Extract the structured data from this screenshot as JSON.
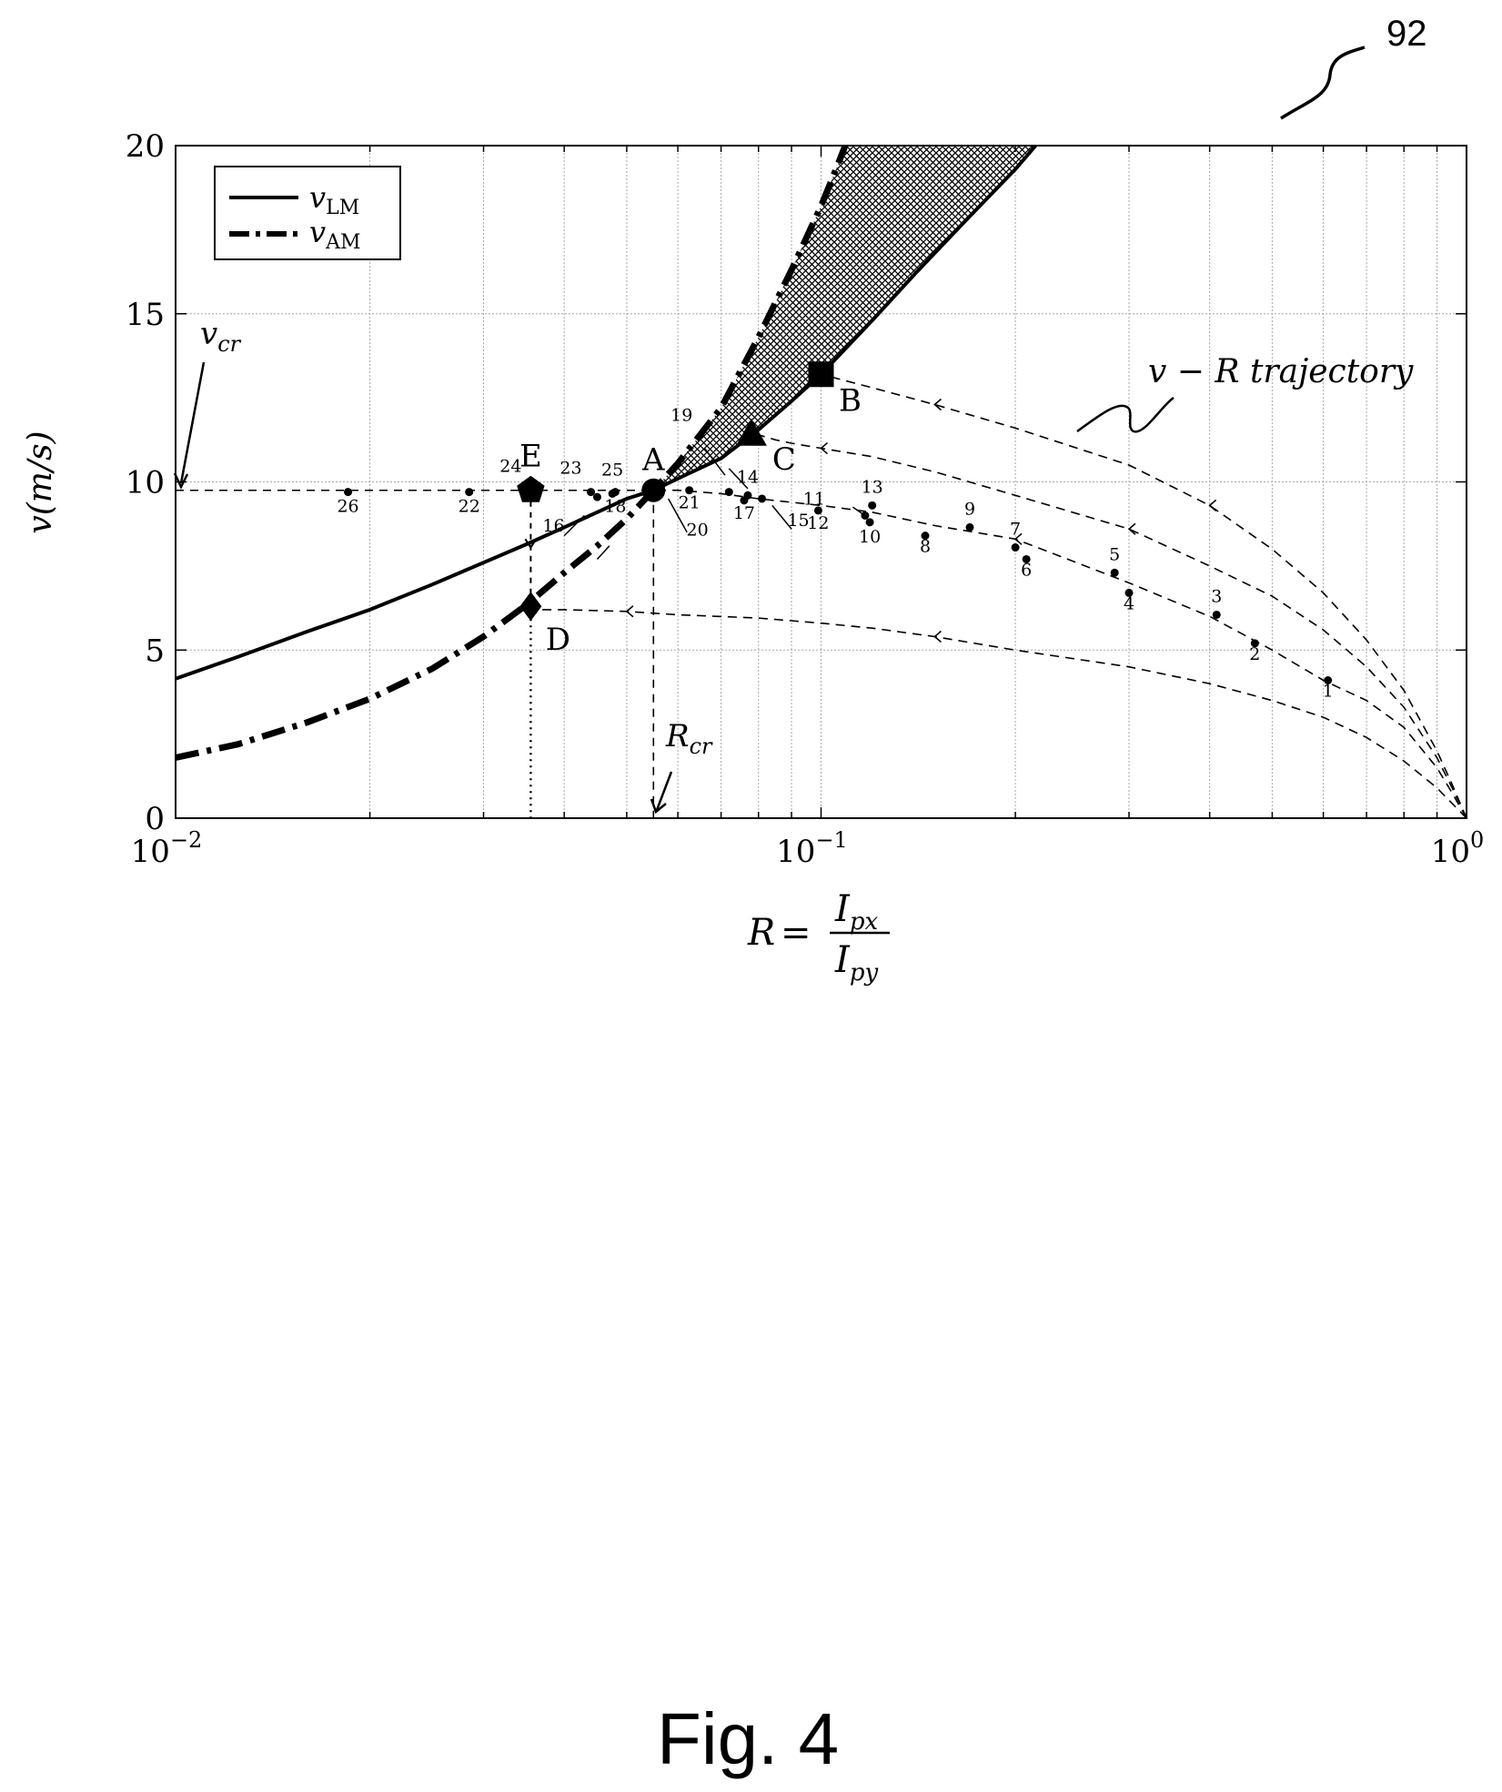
{
  "reference_numeral": "92",
  "figure_caption": "Fig. 4",
  "chart_data": {
    "type": "line",
    "x_scale": "log",
    "xlim": [
      0.01,
      1
    ],
    "ylim": [
      0,
      20
    ],
    "x_ticks": [
      {
        "value": 0.01,
        "base": "10",
        "exp": "−2"
      },
      {
        "value": 0.1,
        "base": "10",
        "exp": "−1"
      },
      {
        "value": 1,
        "base": "10",
        "exp": "0"
      }
    ],
    "y_ticks": [
      0,
      5,
      10,
      15,
      20
    ],
    "grid": true,
    "xlabel": {
      "lhs": "R",
      "eq": "=",
      "num": "I",
      "num_sub": "px",
      "den": "I",
      "den_sub": "py"
    },
    "ylabel": "v(m/s)",
    "legend": {
      "position": "top-left",
      "entries": [
        {
          "sym": "v",
          "sub": "LM",
          "style": "solid"
        },
        {
          "sym": "v",
          "sub": "AM",
          "style": "dash-dot"
        }
      ]
    },
    "series": [
      {
        "name": "vLM",
        "style": "solid",
        "points": [
          [
            0.01,
            4.15
          ],
          [
            0.0125,
            4.8
          ],
          [
            0.016,
            5.55
          ],
          [
            0.02,
            6.2
          ],
          [
            0.025,
            6.95
          ],
          [
            0.03,
            7.6
          ],
          [
            0.035,
            8.15
          ],
          [
            0.04,
            8.65
          ],
          [
            0.045,
            9.1
          ],
          [
            0.05,
            9.5
          ],
          [
            0.055,
            9.75
          ],
          [
            0.06,
            10.1
          ],
          [
            0.07,
            10.7
          ],
          [
            0.08,
            11.55
          ],
          [
            0.09,
            12.4
          ],
          [
            0.1,
            13.2
          ],
          [
            0.12,
            14.8
          ],
          [
            0.14,
            16.2
          ],
          [
            0.17,
            17.9
          ],
          [
            0.2,
            19.3
          ],
          [
            0.215,
            20
          ]
        ]
      },
      {
        "name": "vAM",
        "style": "dash-dot",
        "points": [
          [
            0.01,
            1.8
          ],
          [
            0.0125,
            2.2
          ],
          [
            0.016,
            2.85
          ],
          [
            0.02,
            3.55
          ],
          [
            0.025,
            4.45
          ],
          [
            0.03,
            5.4
          ],
          [
            0.035,
            6.35
          ],
          [
            0.04,
            7.3
          ],
          [
            0.045,
            8.1
          ],
          [
            0.05,
            8.9
          ],
          [
            0.055,
            9.75
          ],
          [
            0.06,
            10.55
          ],
          [
            0.07,
            12.2
          ],
          [
            0.08,
            14.3
          ],
          [
            0.09,
            16.3
          ],
          [
            0.1,
            18.2
          ],
          [
            0.105,
            19.2
          ],
          [
            0.109,
            20
          ]
        ]
      }
    ],
    "shaded_region": {
      "between": [
        "vAM",
        "vLM"
      ],
      "x_from": 0.055,
      "pattern": "crosshatch"
    },
    "trajectories": [
      {
        "style": "dashed",
        "points": [
          [
            1,
            0
          ],
          [
            0.95,
            1.0
          ],
          [
            0.9,
            2.0
          ],
          [
            0.8,
            3.8
          ],
          [
            0.7,
            5.3
          ],
          [
            0.6,
            6.7
          ],
          [
            0.5,
            8.0
          ],
          [
            0.4,
            9.3
          ],
          [
            0.3,
            10.5
          ],
          [
            0.2,
            11.6
          ],
          [
            0.15,
            12.3
          ],
          [
            0.12,
            12.8
          ],
          [
            0.1,
            13.2
          ]
        ],
        "arrows_at": [
          0.4,
          0.15
        ]
      },
      {
        "style": "dashed",
        "points": [
          [
            1,
            0
          ],
          [
            0.95,
            0.9
          ],
          [
            0.9,
            1.8
          ],
          [
            0.8,
            3.3
          ],
          [
            0.7,
            4.5
          ],
          [
            0.6,
            5.6
          ],
          [
            0.5,
            6.6
          ],
          [
            0.4,
            7.5
          ],
          [
            0.3,
            8.6
          ],
          [
            0.2,
            9.6
          ],
          [
            0.15,
            10.3
          ],
          [
            0.12,
            10.75
          ],
          [
            0.1,
            11.0
          ],
          [
            0.09,
            11.15
          ],
          [
            0.085,
            11.25
          ],
          [
            0.08,
            11.4
          ]
        ],
        "arrows_at": [
          0.3,
          0.1
        ]
      },
      {
        "style": "dashed",
        "points": [
          [
            1,
            0
          ],
          [
            0.95,
            0.75
          ],
          [
            0.9,
            1.5
          ],
          [
            0.8,
            2.7
          ],
          [
            0.7,
            3.5
          ],
          [
            0.6,
            4.1
          ],
          [
            0.5,
            5.0
          ],
          [
            0.4,
            6.0
          ],
          [
            0.3,
            7.0
          ],
          [
            0.2,
            8.3
          ],
          [
            0.15,
            8.7
          ],
          [
            0.12,
            9.1
          ],
          [
            0.1,
            9.3
          ],
          [
            0.08,
            9.5
          ],
          [
            0.07,
            9.65
          ],
          [
            0.06,
            9.75
          ],
          [
            0.055,
            9.75
          ]
        ],
        "arrows_at": [
          0.2
        ]
      },
      {
        "style": "dashed",
        "points": [
          [
            1,
            0
          ],
          [
            0.9,
            0.9
          ],
          [
            0.8,
            1.7
          ],
          [
            0.7,
            2.4
          ],
          [
            0.6,
            3.0
          ],
          [
            0.5,
            3.5
          ],
          [
            0.4,
            4.0
          ],
          [
            0.3,
            4.5
          ],
          [
            0.2,
            5.0
          ],
          [
            0.15,
            5.4
          ],
          [
            0.12,
            5.65
          ],
          [
            0.1,
            5.8
          ],
          [
            0.08,
            5.95
          ],
          [
            0.06,
            6.05
          ],
          [
            0.05,
            6.15
          ],
          [
            0.04,
            6.2
          ],
          [
            0.036,
            6.2
          ]
        ],
        "arrows_at": [
          0.15,
          0.05
        ]
      }
    ],
    "data_points": [
      {
        "label": "1",
        "x": 0.61,
        "y": 4.1
      },
      {
        "label": "2",
        "x": 0.47,
        "y": 5.2
      },
      {
        "label": "3",
        "x": 0.41,
        "y": 6.05
      },
      {
        "label": "4",
        "x": 0.3,
        "y": 6.7
      },
      {
        "label": "5",
        "x": 0.285,
        "y": 7.3
      },
      {
        "label": "6",
        "x": 0.208,
        "y": 7.7
      },
      {
        "label": "7",
        "x": 0.2,
        "y": 8.05
      },
      {
        "label": "8",
        "x": 0.145,
        "y": 8.4
      },
      {
        "label": "9",
        "x": 0.17,
        "y": 8.65
      },
      {
        "label": "10",
        "x": 0.119,
        "y": 8.8
      },
      {
        "label": "11",
        "x": 0.117,
        "y": 9.0
      },
      {
        "label": "12",
        "x": 0.099,
        "y": 9.15
      },
      {
        "label": "13",
        "x": 0.12,
        "y": 9.3
      },
      {
        "label": "14",
        "x": 0.077,
        "y": 9.6
      },
      {
        "label": "15",
        "x": 0.081,
        "y": 9.5
      },
      {
        "label": "16",
        "x": 0.045,
        "y": 9.55
      },
      {
        "label": "17",
        "x": 0.076,
        "y": 9.45
      },
      {
        "label": "18",
        "x": 0.048,
        "y": 9.7
      },
      {
        "label": "19",
        "x": 0.072,
        "y": 9.7
      },
      {
        "label": "20",
        "x": 0.0565,
        "y": 9.75
      },
      {
        "label": "21",
        "x": 0.0625,
        "y": 9.75
      },
      {
        "label": "22",
        "x": 0.0285,
        "y": 9.7
      },
      {
        "label": "23",
        "x": 0.044,
        "y": 9.7
      },
      {
        "label": "24",
        "x": 0.0355,
        "y": 9.75
      },
      {
        "label": "25",
        "x": 0.0475,
        "y": 9.65
      },
      {
        "label": "26",
        "x": 0.0185,
        "y": 9.7
      }
    ],
    "key_points": [
      {
        "label": "A",
        "marker": "circle",
        "x": 0.055,
        "y": 9.75
      },
      {
        "label": "B",
        "marker": "square",
        "x": 0.1,
        "y": 13.2
      },
      {
        "label": "C",
        "marker": "triangle",
        "x": 0.078,
        "y": 11.4
      },
      {
        "label": "D",
        "marker": "diamond",
        "x": 0.0355,
        "y": 6.3
      },
      {
        "label": "E",
        "marker": "pentagon",
        "x": 0.0355,
        "y": 9.75
      }
    ],
    "annotations": [
      {
        "text": "v − R trajectory"
      },
      {
        "sym": "v",
        "sub": "cr",
        "y": 9.75
      },
      {
        "sym": "R",
        "sub": "cr",
        "x": 0.055
      }
    ]
  }
}
